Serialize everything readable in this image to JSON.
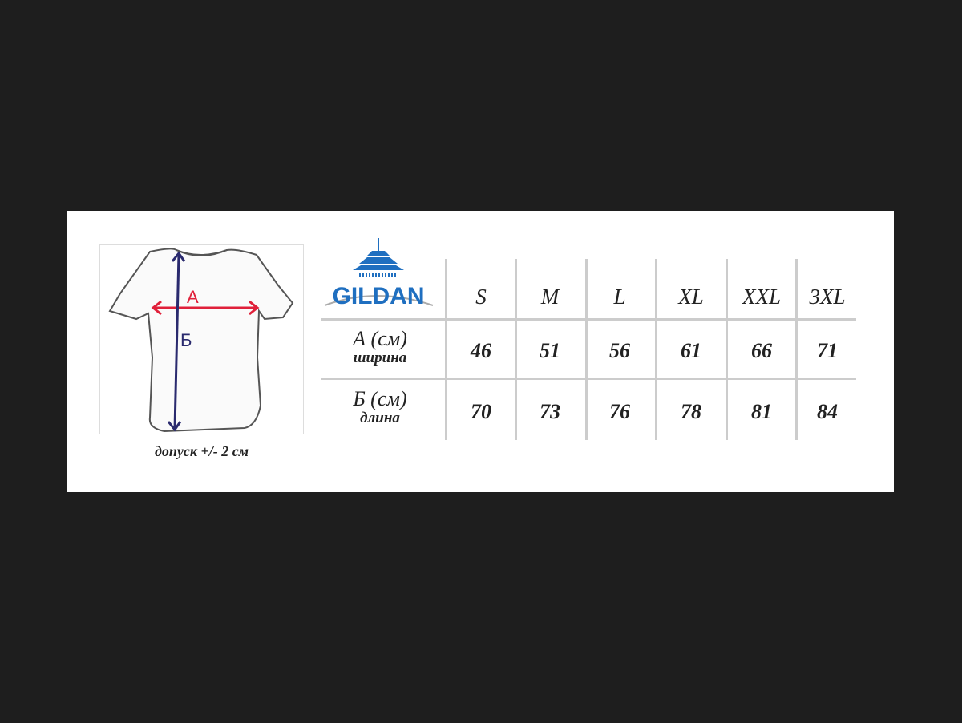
{
  "brand": {
    "name": "GILDAN",
    "color": "#1f6fc0"
  },
  "diagram": {
    "label_a": "А",
    "label_b": "Б",
    "color_a": "#e0203a",
    "color_b": "#2a2a6e"
  },
  "caption": "допуск +/- 2 см",
  "table": {
    "sizes": [
      "S",
      "M",
      "L",
      "XL",
      "XXL",
      "3XL"
    ],
    "rows": [
      {
        "label": "А (см)",
        "sublabel": "ширина",
        "values": [
          "46",
          "51",
          "56",
          "61",
          "66",
          "71"
        ]
      },
      {
        "label": "Б (см)",
        "sublabel": "длина",
        "values": [
          "70",
          "73",
          "76",
          "78",
          "81",
          "84"
        ]
      }
    ]
  }
}
